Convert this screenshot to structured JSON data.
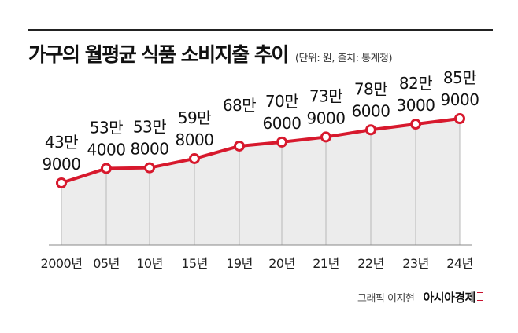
{
  "header": {
    "title": "가구의 월평균 식품 소비지출 추이",
    "subtitle": "(단위: 원, 출처: 통계청)"
  },
  "credit": {
    "graphic_by": "그래픽 이지현",
    "brand": "아시아경제"
  },
  "colors": {
    "line": "#d7192d",
    "area": "#ececec",
    "point_fill": "#ffffff"
  },
  "chart_data": {
    "type": "area",
    "title": "가구의 월평균 식품 소비지출 추이",
    "unit_note": "(단위: 원, 출처: 통계청)",
    "categories": [
      "2000년",
      "05년",
      "10년",
      "15년",
      "19년",
      "20년",
      "21년",
      "22년",
      "23년",
      "24년"
    ],
    "series": [
      {
        "values": [
          439000,
          534000,
          538000,
          598000,
          680000,
          706000,
          739000,
          786000,
          823000,
          859000
        ],
        "labels": [
          [
            "43만",
            "9000"
          ],
          [
            "53만",
            "4000"
          ],
          [
            "53만",
            "8000"
          ],
          [
            "59만",
            "8000"
          ],
          [
            "68만",
            ""
          ],
          [
            "70만",
            "6000"
          ],
          [
            "73만",
            "9000"
          ],
          [
            "78만",
            "6000"
          ],
          [
            "82만",
            "3000"
          ],
          [
            "85만",
            "9000"
          ]
        ]
      }
    ],
    "ylim": [
      200000,
      900000
    ],
    "grid": false,
    "legend": "none"
  }
}
